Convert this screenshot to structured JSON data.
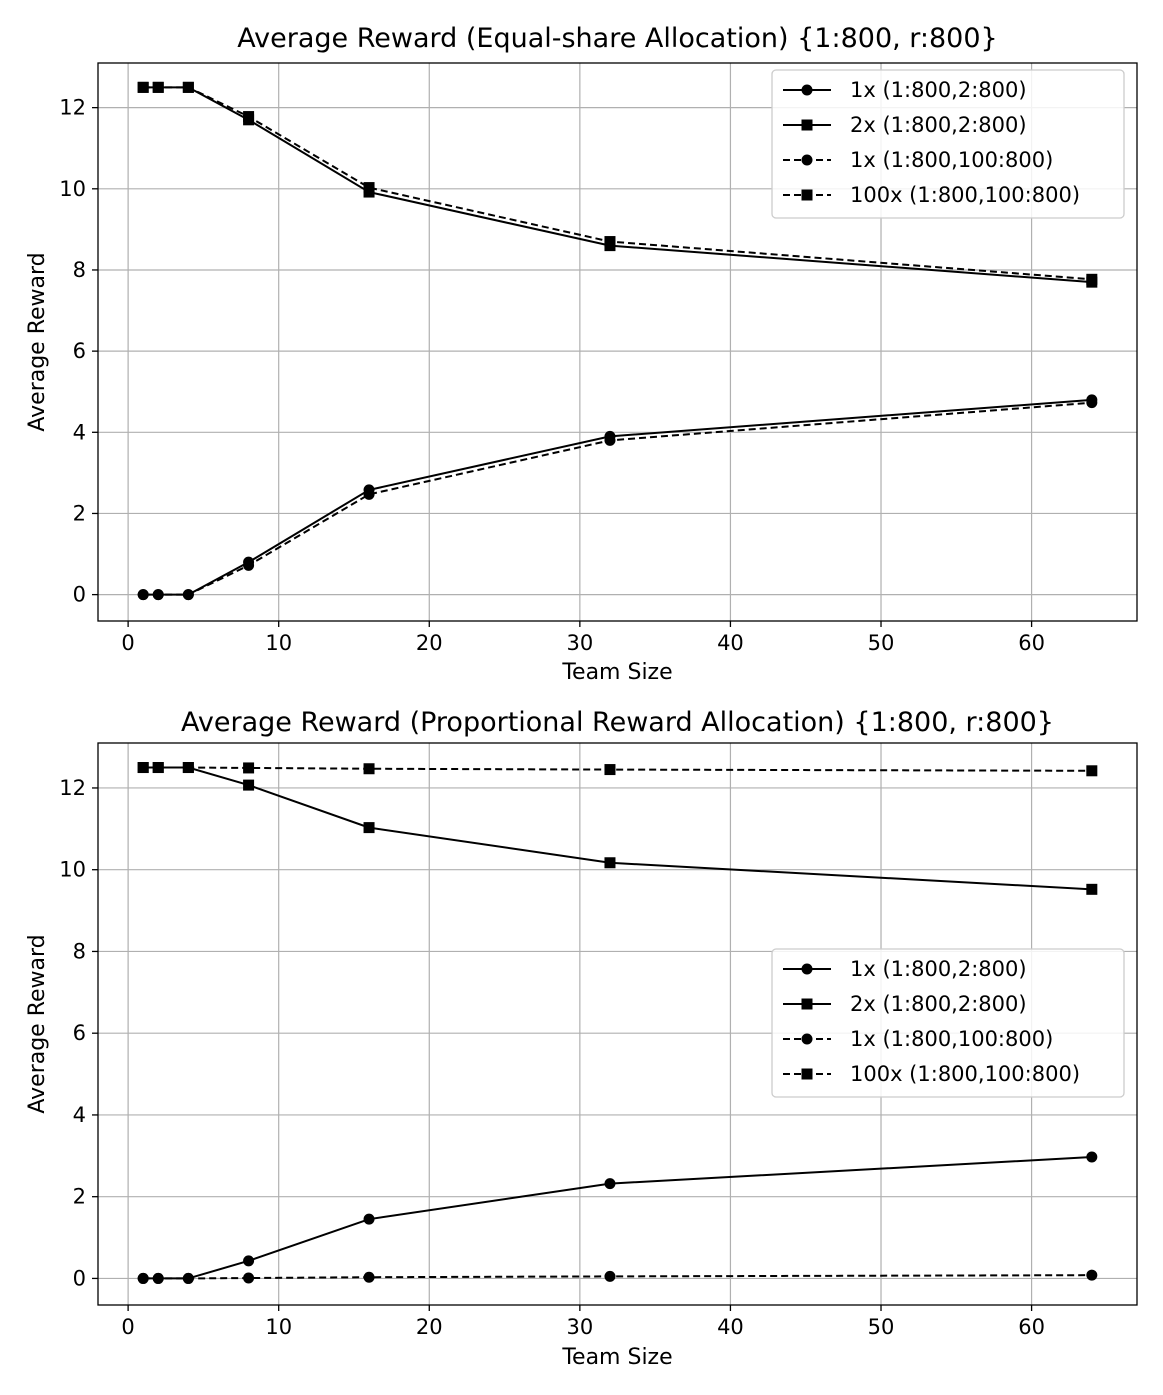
{
  "chart_data": [
    {
      "type": "line",
      "title": "Average Reward (Equal-share Allocation) {1:800, r:800}",
      "xlabel": "Team Size",
      "ylabel": "Average Reward",
      "xlim": [
        -2,
        67
      ],
      "ylim": [
        -0.65,
        13.1
      ],
      "xticks": [
        0,
        10,
        20,
        30,
        40,
        50,
        60
      ],
      "yticks": [
        0,
        2,
        4,
        6,
        8,
        10,
        12
      ],
      "grid": true,
      "legend_position": "top-right",
      "x": [
        1,
        2,
        4,
        8,
        16,
        32,
        64
      ],
      "series": [
        {
          "name": "1x (1:800,2:800)",
          "linestyle": "solid",
          "marker": "circle",
          "values": [
            0,
            0,
            0,
            0.8,
            2.58,
            3.9,
            4.8
          ]
        },
        {
          "name": "2x (1:800,2:800)",
          "linestyle": "solid",
          "marker": "square",
          "values": [
            12.5,
            12.5,
            12.5,
            11.7,
            9.92,
            8.6,
            7.7
          ]
        },
        {
          "name": "1x (1:800,100:800)",
          "linestyle": "dashed",
          "marker": "circle",
          "values": [
            0,
            0,
            0,
            0.72,
            2.47,
            3.8,
            4.73
          ]
        },
        {
          "name": "100x (1:800,100:800)",
          "linestyle": "dashed",
          "marker": "square",
          "values": [
            12.5,
            12.5,
            12.5,
            11.78,
            10.03,
            8.7,
            7.77
          ]
        }
      ]
    },
    {
      "type": "line",
      "title": "Average Reward (Proportional Reward Allocation) {1:800, r:800}",
      "xlabel": "Team Size",
      "ylabel": "Average Reward",
      "xlim": [
        -2,
        67
      ],
      "ylim": [
        -0.65,
        13.1
      ],
      "xticks": [
        0,
        10,
        20,
        30,
        40,
        50,
        60
      ],
      "yticks": [
        0,
        2,
        4,
        6,
        8,
        10,
        12
      ],
      "grid": true,
      "legend_position": "center-right",
      "x": [
        1,
        2,
        4,
        8,
        16,
        32,
        64
      ],
      "series": [
        {
          "name": "1x (1:800,2:800)",
          "linestyle": "solid",
          "marker": "circle",
          "values": [
            0,
            0,
            0,
            0.43,
            1.45,
            2.32,
            2.97
          ]
        },
        {
          "name": "2x (1:800,2:800)",
          "linestyle": "solid",
          "marker": "square",
          "values": [
            12.5,
            12.5,
            12.5,
            12.07,
            11.03,
            10.17,
            9.52
          ]
        },
        {
          "name": "1x (1:800,100:800)",
          "linestyle": "dashed",
          "marker": "circle",
          "values": [
            0,
            0,
            0,
            0.01,
            0.03,
            0.05,
            0.08
          ]
        },
        {
          "name": "100x (1:800,100:800)",
          "linestyle": "dashed",
          "marker": "square",
          "values": [
            12.5,
            12.5,
            12.5,
            12.49,
            12.47,
            12.45,
            12.42
          ]
        }
      ]
    }
  ]
}
